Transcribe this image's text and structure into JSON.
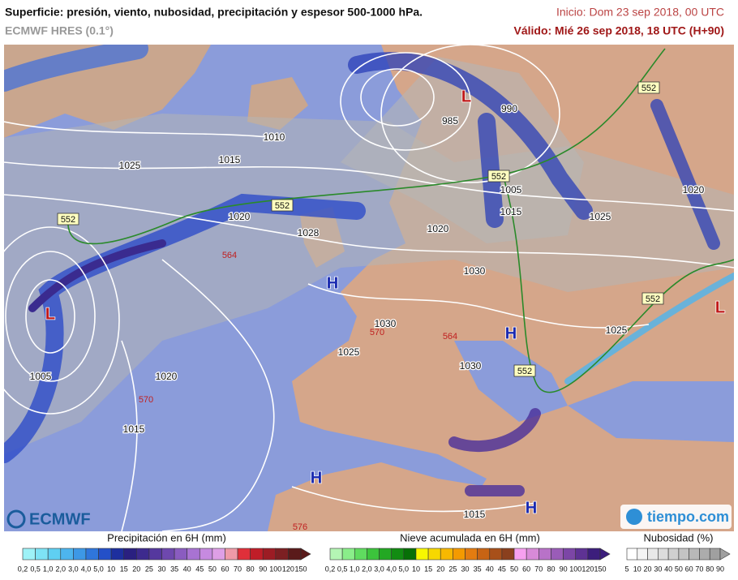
{
  "header": {
    "title": "Superficie: presión, viento, nubosidad, precipitación y espesor 500-1000 hPa.",
    "model": "ECMWF HRES (0.1°)",
    "init": "Inicio: Dom 23 sep 2018, 00 UTC",
    "valid": "Válido: Mié 26 sep 2018, 18 UTC (H+90)"
  },
  "map": {
    "isobars": [
      "1010",
      "1015",
      "1025",
      "1020",
      "1028",
      "1020",
      "1030",
      "1030",
      "1025",
      "1030",
      "1020",
      "1005",
      "1015",
      "1015",
      "1025",
      "1025",
      "1020",
      "985",
      "990",
      "1005",
      "1015"
    ],
    "centers": [
      "H",
      "H",
      "H",
      "H",
      "L",
      "L",
      "L"
    ],
    "thickness_552": [
      "552",
      "552",
      "552",
      "552",
      "552",
      "552"
    ],
    "thickness_other": [
      "564",
      "570",
      "564",
      "570",
      "576"
    ],
    "logos": {
      "ecmwf": "ECMWF",
      "tiempo": "tiempo.com"
    }
  },
  "legends": [
    {
      "title": "Precipitación en 6H (mm)",
      "labels": [
        "0,2",
        "0,5",
        "1,0",
        "2,0",
        "3,0",
        "4,0",
        "5,0",
        "10",
        "15",
        "20",
        "25",
        "30",
        "35",
        "40",
        "45",
        "50",
        "60",
        "70",
        "80",
        "90",
        "100",
        "120",
        "150"
      ],
      "colors": [
        "#9ef2f7",
        "#7ee3f5",
        "#5fcff2",
        "#4db5ee",
        "#3d98e6",
        "#2f76dc",
        "#2450c8",
        "#1d2f9e",
        "#2a2080",
        "#3d2a8e",
        "#55389e",
        "#6e48ae",
        "#8a5cc0",
        "#a873d2",
        "#c68ae0",
        "#de9fe6",
        "#ef9aa8",
        "#e0303a",
        "#c01d28",
        "#9c1c24",
        "#7c1f22",
        "#5a1a1a"
      ]
    },
    {
      "title": "Nieve acumulada en 6H (mm)",
      "labels": [
        "0,2",
        "0,5",
        "1,0",
        "2,0",
        "3,0",
        "4,0",
        "5,0",
        "10",
        "15",
        "20",
        "25",
        "30",
        "35",
        "40",
        "45",
        "50",
        "60",
        "70",
        "80",
        "90",
        "100",
        "120",
        "150"
      ],
      "colors": [
        "#b4f5b4",
        "#8aee8a",
        "#5fdc5f",
        "#3cc43c",
        "#23a823",
        "#128c12",
        "#077007",
        "#f7f700",
        "#f7d800",
        "#f7b800",
        "#f49a00",
        "#e47c10",
        "#c86414",
        "#a8501a",
        "#8a401e",
        "#f7a0f0",
        "#d88ad8",
        "#b872c8",
        "#9a5cb8",
        "#7c46a6",
        "#5e3294",
        "#3c1e7c"
      ]
    },
    {
      "title": "Nubosidad (%)",
      "labels": [
        "5",
        "10",
        "20",
        "30",
        "40",
        "50",
        "60",
        "70",
        "80",
        "90"
      ],
      "colors": [
        "#ffffff",
        "#f4f4f4",
        "#e8e8e8",
        "#dcdcdc",
        "#d0d0d0",
        "#c4c4c4",
        "#b8b8b8",
        "#acacac",
        "#a0a0a0"
      ]
    }
  ]
}
